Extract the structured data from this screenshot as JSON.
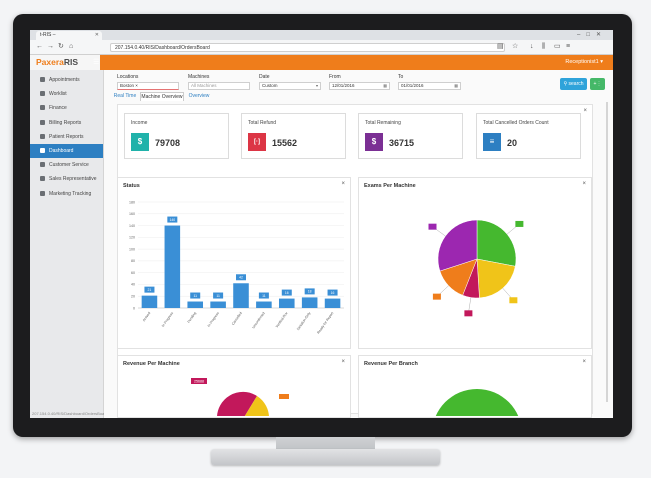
{
  "browser": {
    "tab_title": "t-RIS –",
    "url": "207.154.0.40/RIS/Dashboard/OrdersBoard"
  },
  "app": {
    "logo_part1": "Paxera",
    "logo_part2": "RIS",
    "user_menu": "Receptionist1 ▾"
  },
  "sidebar": {
    "items": [
      {
        "label": "Appointments"
      },
      {
        "label": "Worklist"
      },
      {
        "label": "Finance"
      },
      {
        "label": "Billing Reports"
      },
      {
        "label": "Patient Reports"
      },
      {
        "label": "Dashboard"
      },
      {
        "label": "Customer Service"
      },
      {
        "label": "Sales Representative"
      },
      {
        "label": "Marketing Tracking"
      }
    ],
    "footer_url": "207.154.0.40/RIS/Dashboard/OrdersBoard"
  },
  "filters": {
    "locations_label": "Locations",
    "locations_value": "Boston ×",
    "machines_label": "Machines",
    "machines_placeholder": "All Machines",
    "date_label": "Date",
    "date_value": "Custom",
    "from_label": "From",
    "from_value": "12/01/2016",
    "to_label": "To",
    "to_value": "01/01/2016",
    "search_label": "search"
  },
  "tabs": [
    "Real Time",
    "Machine Overview",
    "Overview"
  ],
  "kpis": [
    {
      "label": "Income",
      "value": "79708",
      "icon": "$",
      "color": "#20b2aa"
    },
    {
      "label": "Total Refund",
      "value": "15562",
      "icon": "[·]",
      "color": "#dc3545"
    },
    {
      "label": "Total Remaining",
      "value": "36715",
      "icon": "$",
      "color": "#7b2f94"
    },
    {
      "label": "Total Cancelled Orders Count",
      "value": "20",
      "icon": "≡",
      "color": "#2d7fc2"
    }
  ],
  "status_panel": {
    "title": "Status"
  },
  "exams_panel": {
    "title": "Exams Per Machine"
  },
  "revenue_machine_panel": {
    "title": "Revenue Per Machine",
    "label": "25688"
  },
  "revenue_branch_panel": {
    "title": "Revenue Per Branch"
  },
  "chart_data": [
    {
      "type": "bar",
      "title": "Status",
      "categories": [
        "Arrived",
        "In Progress",
        "Pending",
        "In Progress",
        "Cancelled",
        "Unconfirmed",
        "Verified-Rcv",
        "Dictation-Only",
        "Ready for Report"
      ],
      "values": [
        21,
        140,
        11,
        11,
        42,
        11,
        16,
        18,
        16
      ],
      "bar_color": "#3a8fd6",
      "ylim": [
        0,
        180
      ],
      "yticks": [
        0,
        20,
        40,
        60,
        80,
        100,
        120,
        140,
        160,
        180
      ],
      "grid": true
    },
    {
      "type": "pie",
      "title": "Exams Per Machine",
      "series": [
        {
          "name": "CT Machine1",
          "value": 28,
          "color": "#45b82f"
        },
        {
          "name": "CT Machine2",
          "value": 21,
          "color": "#f0c419"
        },
        {
          "name": "MG Machine",
          "value": 7,
          "color": "#c2185b"
        },
        {
          "name": "MR Machine",
          "value": 14,
          "color": "#ef7d1b"
        },
        {
          "name": "US Machine",
          "value": 30,
          "color": "#9c27b0"
        }
      ],
      "legend": "bottom"
    }
  ]
}
